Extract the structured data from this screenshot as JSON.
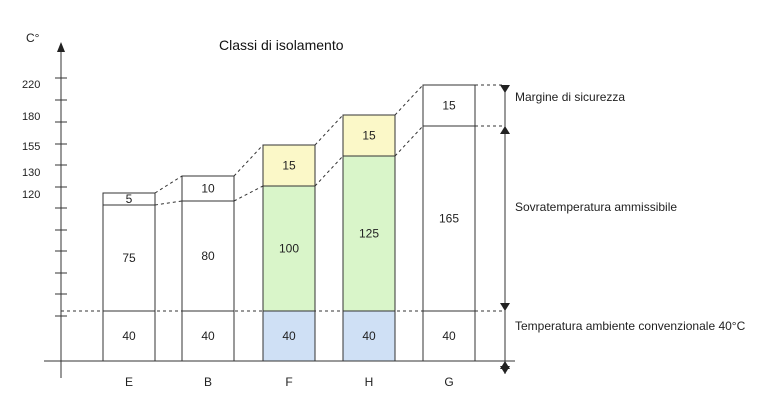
{
  "title": "Classi di isolamento",
  "y_unit": "C°",
  "colors": {
    "ambient_highlight": "#cfe0f5",
    "overtemp_highlight": "#d9f5c9",
    "margin_highlight": "#fbf8c8",
    "plain": "#ffffff",
    "stroke": "#333333"
  },
  "chart_data": {
    "type": "bar",
    "stacked": true,
    "categories": [
      "E",
      "B",
      "F",
      "H",
      "G"
    ],
    "series": [
      {
        "name": "Temperatura ambiente convenzionale 40°C",
        "values": [
          40,
          40,
          40,
          40,
          40
        ]
      },
      {
        "name": "Sovratemperatura ammissibile",
        "values": [
          75,
          80,
          100,
          125,
          165
        ]
      },
      {
        "name": "Margine di sicurezza",
        "values": [
          5,
          10,
          15,
          15,
          15
        ]
      }
    ],
    "highlighted_categories": [
      "F",
      "H"
    ],
    "y_tick_labels": [
      "220",
      "180",
      "155",
      "130",
      "120"
    ],
    "totals": [
      120,
      130,
      155,
      180,
      220
    ]
  },
  "legend": {
    "margin": "Margine di sicurezza",
    "overtemp": "Sovratemperatura ammissibile",
    "ambient": "Temperatura ambiente convenzionale 40°C"
  }
}
